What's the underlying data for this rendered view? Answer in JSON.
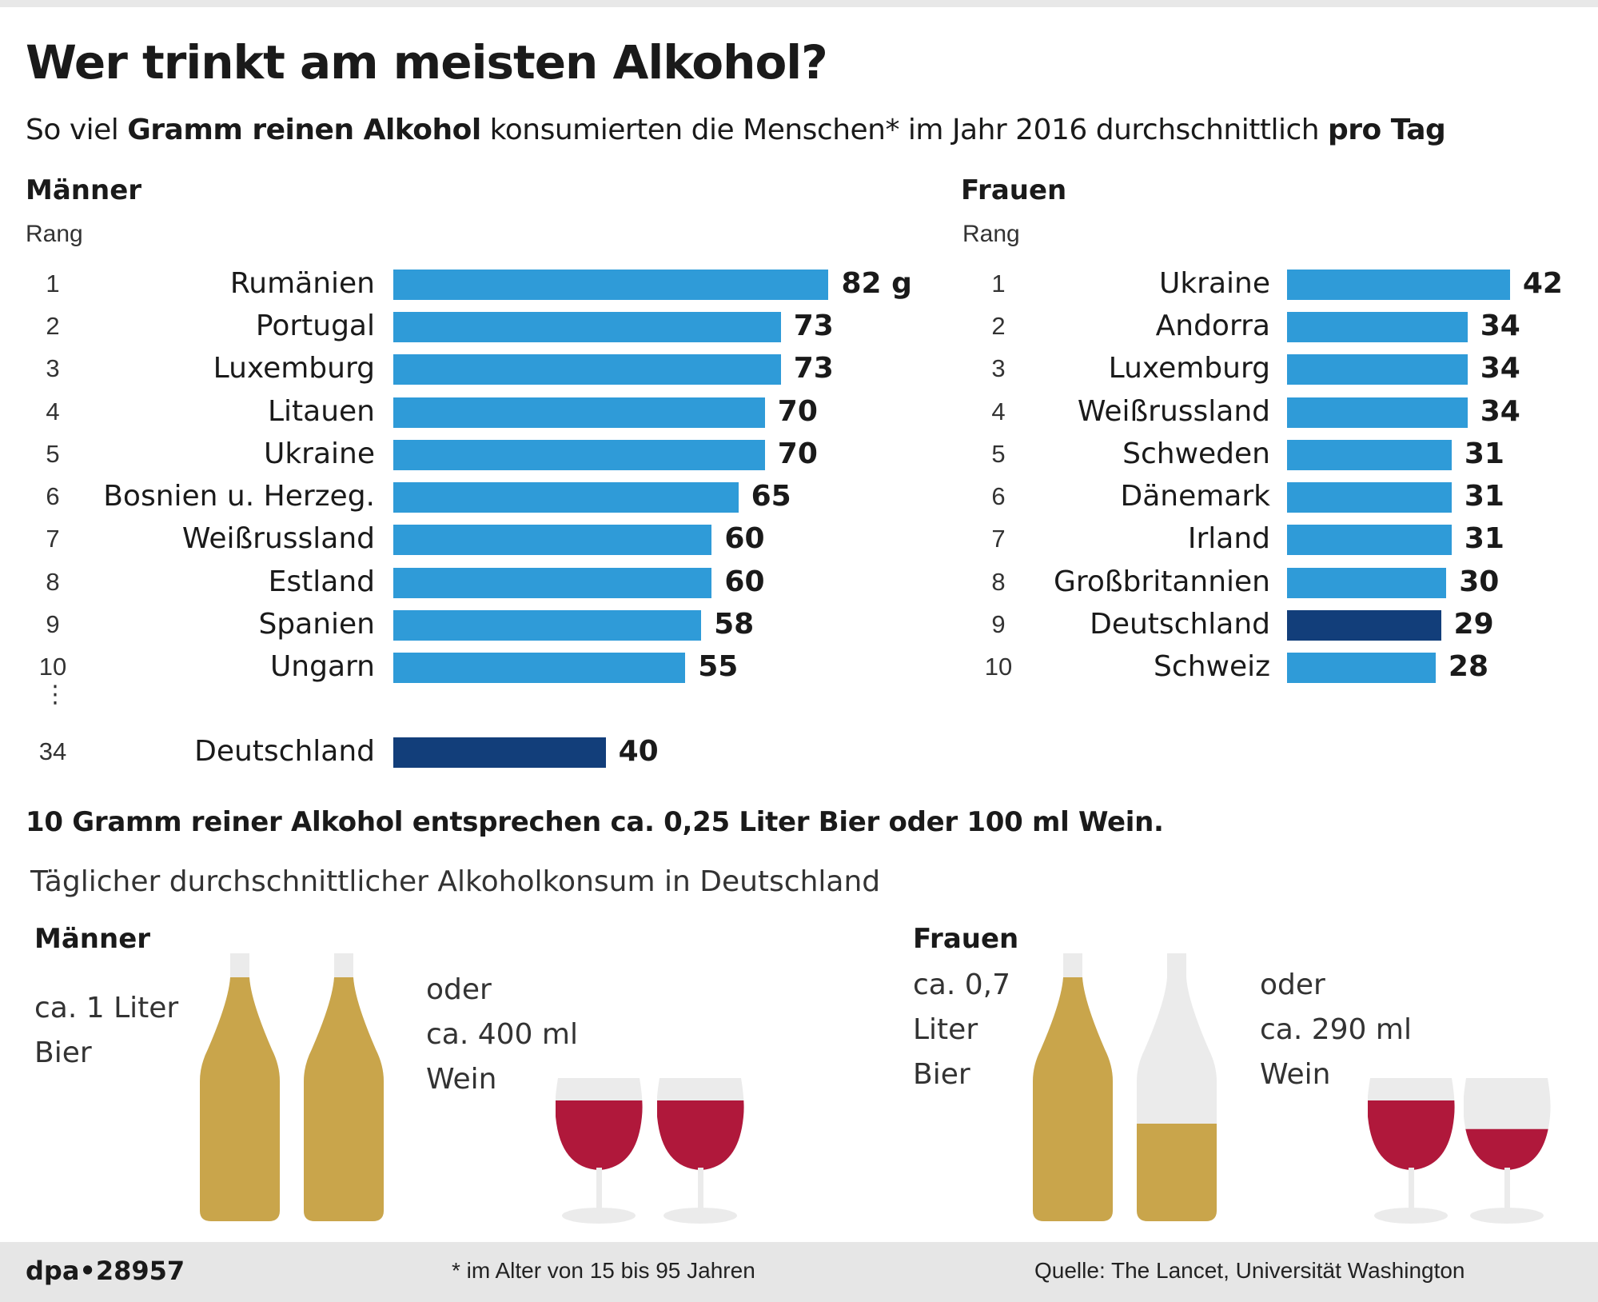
{
  "title": "Wer trinkt am meisten Alkohol?",
  "subtitle": {
    "part1": "So viel ",
    "bold1": "Gramm reinen Alkohol",
    "part2": " konsumierten die Menschen* im Jahr 2016 durchschnittlich ",
    "bold2": "pro Tag"
  },
  "colors": {
    "bar": "#2f9bd8",
    "highlight": "#123e7a",
    "beer": "#c9a54b",
    "empty": "#ebebeb",
    "wine": "#b0183b",
    "footer": "#e6e6e6"
  },
  "chart_data": [
    {
      "type": "bar",
      "orientation": "horizontal",
      "title": "Männer",
      "rank_header": "Rang",
      "unit": "g",
      "rows": [
        {
          "rank": "1",
          "country": "Rumänien",
          "value": 82,
          "label": "82 g"
        },
        {
          "rank": "2",
          "country": "Portugal",
          "value": 73,
          "label": "73"
        },
        {
          "rank": "3",
          "country": "Luxemburg",
          "value": 73,
          "label": "73"
        },
        {
          "rank": "4",
          "country": "Litauen",
          "value": 70,
          "label": "70"
        },
        {
          "rank": "5",
          "country": "Ukraine",
          "value": 70,
          "label": "70"
        },
        {
          "rank": "6",
          "country": "Bosnien u. Herzeg.",
          "value": 65,
          "label": "65"
        },
        {
          "rank": "7",
          "country": "Weißrussland",
          "value": 60,
          "label": "60"
        },
        {
          "rank": "8",
          "country": "Estland",
          "value": 60,
          "label": "60"
        },
        {
          "rank": "9",
          "country": "Spanien",
          "value": 58,
          "label": "58"
        },
        {
          "rank": "10",
          "country": "Ungarn",
          "value": 55,
          "label": "55"
        },
        {
          "rank": "34",
          "country": "Deutschland",
          "value": 40,
          "label": "40",
          "highlight": true
        }
      ],
      "gap_marker": "⋮"
    },
    {
      "type": "bar",
      "orientation": "horizontal",
      "title": "Frauen",
      "rank_header": "Rang",
      "unit": "g",
      "rows": [
        {
          "rank": "1",
          "country": "Ukraine",
          "value": 42,
          "label": "42"
        },
        {
          "rank": "2",
          "country": "Andorra",
          "value": 34,
          "label": "34"
        },
        {
          "rank": "3",
          "country": "Luxemburg",
          "value": 34,
          "label": "34"
        },
        {
          "rank": "4",
          "country": "Weißrussland",
          "value": 34,
          "label": "34"
        },
        {
          "rank": "5",
          "country": "Schweden",
          "value": 31,
          "label": "31"
        },
        {
          "rank": "6",
          "country": "Dänemark",
          "value": 31,
          "label": "31"
        },
        {
          "rank": "7",
          "country": "Irland",
          "value": 31,
          "label": "31"
        },
        {
          "rank": "8",
          "country": "Großbritannien",
          "value": 30,
          "label": "30"
        },
        {
          "rank": "9",
          "country": "Deutschland",
          "value": 29,
          "label": "29",
          "highlight": true
        },
        {
          "rank": "10",
          "country": "Schweiz",
          "value": 28,
          "label": "28"
        }
      ]
    }
  ],
  "note": "10 Gramm reiner Alkohol entsprechen ca. 0,25 Liter Bier oder 100 ml Wein.",
  "daily_title": "Täglicher durchschnittlicher Alkoholkonsum in Deutschland",
  "men": {
    "title": "Männer",
    "beer_line1": "ca. 1 Liter",
    "beer_line2": "Bier",
    "or": "oder",
    "wine_line1": "ca. 400 ml",
    "wine_line2": "Wein",
    "bottle_fill": [
      1,
      1
    ],
    "glass_fill": [
      1,
      1
    ]
  },
  "women": {
    "title": "Frauen",
    "beer_line1": "ca. 0,7",
    "beer_line2": "Liter",
    "beer_line3": "Bier",
    "or": "oder",
    "wine_line1": "ca. 290 ml",
    "wine_line2": "Wein",
    "bottle_fill": [
      1,
      0.4
    ],
    "glass_fill": [
      1,
      0.45
    ]
  },
  "footer": {
    "id": "dpa•28957",
    "footnote": "* im Alter von 15 bis 95 Jahren",
    "source": "Quelle: The Lancet, Universität Washington"
  }
}
